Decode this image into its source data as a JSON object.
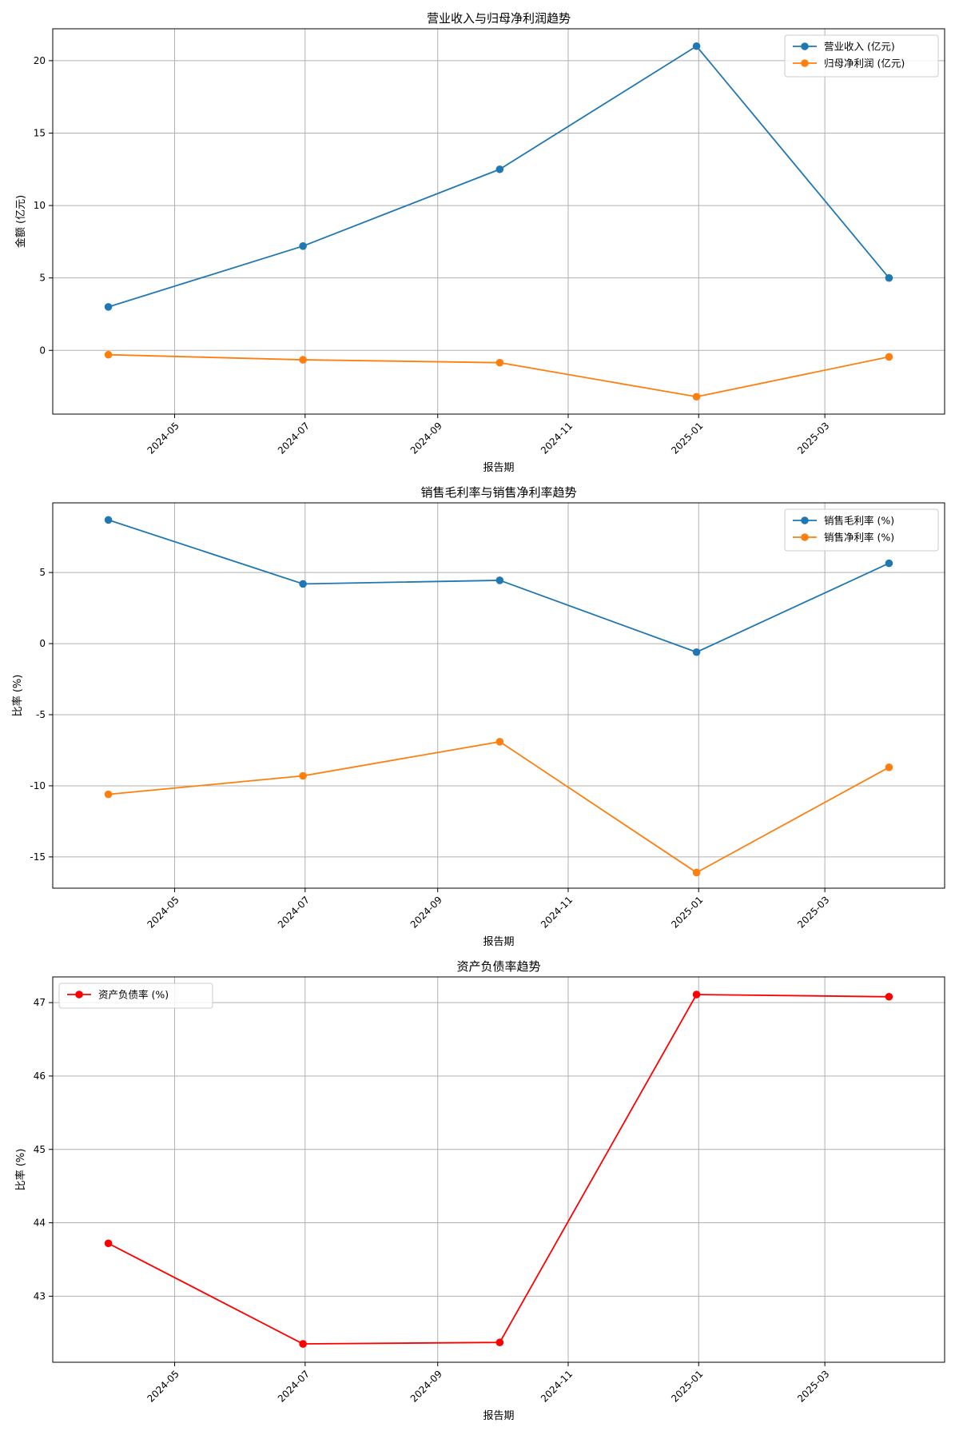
{
  "chart_data": [
    {
      "type": "line",
      "title": "营业收入与归母净利润趋势",
      "xlabel": "报告期",
      "ylabel": "金额 (亿元)",
      "x": [
        "2024-03-31",
        "2024-06-30",
        "2024-09-30",
        "2024-12-31",
        "2025-03-31"
      ],
      "x_ticks": [
        "2024-05",
        "2024-07",
        "2024-09",
        "2024-11",
        "2025-01",
        "2025-03"
      ],
      "y_ticks": [
        0,
        5,
        10,
        15,
        20
      ],
      "ylim": [
        -4.4,
        22.2
      ],
      "grid": true,
      "legend_position": "top-right",
      "series": [
        {
          "name": "营业收入 (亿元)",
          "color": "#1f77b4",
          "values": [
            3.0,
            7.2,
            12.5,
            21.0,
            5.0
          ]
        },
        {
          "name": "归母净利润 (亿元)",
          "color": "#ff7f0e",
          "values": [
            -0.3,
            -0.65,
            -0.85,
            -3.2,
            -0.45
          ]
        }
      ]
    },
    {
      "type": "line",
      "title": "销售毛利率与销售净利率趋势",
      "xlabel": "报告期",
      "ylabel": "比率 (%)",
      "x": [
        "2024-03-31",
        "2024-06-30",
        "2024-09-30",
        "2024-12-31",
        "2025-03-31"
      ],
      "x_ticks": [
        "2024-05",
        "2024-07",
        "2024-09",
        "2024-11",
        "2025-01",
        "2025-03"
      ],
      "y_ticks": [
        5,
        0,
        -5,
        -10,
        -15
      ],
      "y_tick_labels": [
        "5",
        "0",
        "-5",
        "-10",
        "-15"
      ],
      "ylim": [
        -17.2,
        9.9
      ],
      "grid": true,
      "legend_position": "top-right",
      "series": [
        {
          "name": "销售毛利率 (%)",
          "color": "#1f77b4",
          "values": [
            8.7,
            4.2,
            4.45,
            -0.6,
            5.65
          ]
        },
        {
          "name": "销售净利率 (%)",
          "color": "#ff7f0e",
          "values": [
            -10.6,
            -9.3,
            -6.9,
            -16.1,
            -8.7
          ]
        }
      ]
    },
    {
      "type": "line",
      "title": "资产负债率趋势",
      "xlabel": "报告期",
      "ylabel": "比率 (%)",
      "x": [
        "2024-03-31",
        "2024-06-30",
        "2024-09-30",
        "2024-12-31",
        "2025-03-31"
      ],
      "x_ticks": [
        "2024-05",
        "2024-07",
        "2024-09",
        "2024-11",
        "2025-01",
        "2025-03"
      ],
      "y_ticks": [
        43,
        44,
        45,
        46,
        47
      ],
      "ylim": [
        42.1,
        47.35
      ],
      "grid": true,
      "legend_position": "top-left",
      "series": [
        {
          "name": "资产负债率 (%)",
          "color": "#ff0000",
          "values": [
            43.72,
            42.35,
            42.37,
            47.11,
            47.08
          ]
        }
      ]
    }
  ]
}
